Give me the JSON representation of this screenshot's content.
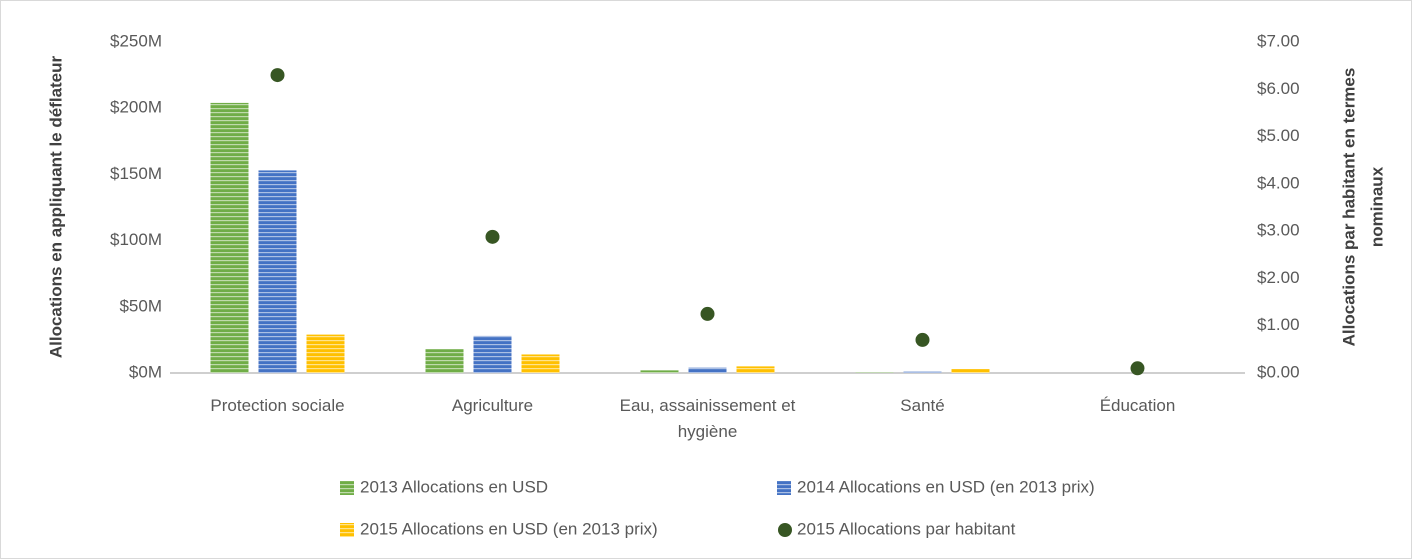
{
  "chart_data": {
    "type": "bar",
    "categories": [
      "Protection sociale",
      "Agriculture",
      "Eau, assainissement et hygiène",
      "Santé",
      "Éducation"
    ],
    "series": [
      {
        "name": "2013 Allocations en USD",
        "color": "#70ad47",
        "type": "bar",
        "values": [
          204,
          18,
          2,
          0.5,
          0
        ]
      },
      {
        "name": "2014 Allocations en USD (en 2013 prix)",
        "color": "#4472c4",
        "type": "bar",
        "values": [
          153,
          28,
          4,
          1,
          0
        ]
      },
      {
        "name": "2015 Allocations en USD (en 2013 prix)",
        "color": "#ffc000",
        "type": "bar",
        "values": [
          29,
          14,
          5,
          3,
          0
        ]
      },
      {
        "name": "2015 Allocations par habitant",
        "color": "#375623",
        "type": "scatter",
        "axis": "y2",
        "values": [
          6.3,
          2.88,
          1.25,
          0.7,
          0.1
        ]
      }
    ],
    "ylabel": "Allocations en appliquant le déflateur",
    "y2label": [
      "Allocations par habitant en termes",
      "nominaux"
    ],
    "ylim": [
      0,
      250
    ],
    "yticks": [
      {
        "value": 0,
        "label": "$0M"
      },
      {
        "value": 50,
        "label": "$50M"
      },
      {
        "value": 100,
        "label": "$100M"
      },
      {
        "value": 150,
        "label": "$150M"
      },
      {
        "value": 200,
        "label": "$200M"
      },
      {
        "value": 250,
        "label": "$250M"
      }
    ],
    "y2lim": [
      0,
      7
    ],
    "y2ticks": [
      {
        "value": 0,
        "label": "$0.00"
      },
      {
        "value": 1,
        "label": "$1.00"
      },
      {
        "value": 2,
        "label": "$2.00"
      },
      {
        "value": 3,
        "label": "$3.00"
      },
      {
        "value": 4,
        "label": "$4.00"
      },
      {
        "value": 5,
        "label": "$5.00"
      },
      {
        "value": 6,
        "label": "$6.00"
      },
      {
        "value": 7,
        "label": "$7.00"
      }
    ],
    "legend": "bottom"
  }
}
